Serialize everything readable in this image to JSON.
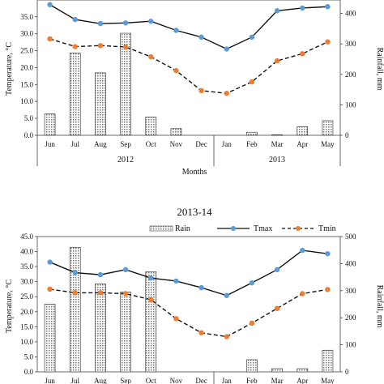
{
  "chart_data": [
    {
      "type": "bar",
      "title": "",
      "months": [
        "Jun",
        "Jul",
        "Aug",
        "Sep",
        "Oct",
        "Nov",
        "Dec",
        "Jan",
        "Feb",
        "Mar",
        "Apr",
        "May"
      ],
      "year_labels": [
        "2012",
        "2013"
      ],
      "xlabel": "Months",
      "ylabel_left": "Temperature, °C",
      "ylabel_right": "Rainfall, mm",
      "yticks_left": [
        "0.0",
        "5.0",
        "10.0",
        "15.0",
        "20.0",
        "25.0",
        "30.0",
        "35.0"
      ],
      "yticks_right": [
        "0",
        "100",
        "200",
        "300",
        "400"
      ],
      "ylim_left": [
        0,
        45
      ],
      "ylim_right": [
        0,
        500
      ],
      "series": [
        {
          "name": "Rain",
          "type": "bar",
          "axis": "right",
          "values": [
            70,
            270,
            205,
            335,
            60,
            22,
            0,
            0,
            10,
            2,
            28,
            48
          ]
        },
        {
          "name": "Tmax",
          "type": "line",
          "axis": "left",
          "color": "#5b9bd5",
          "values": [
            38.6,
            34.2,
            33.0,
            33.2,
            33.7,
            31.0,
            29.0,
            25.5,
            29.0,
            36.8,
            37.6,
            38.0
          ]
        },
        {
          "name": "Tmin",
          "type": "line",
          "axis": "left",
          "color": "#ed7d31",
          "values": [
            28.5,
            26.2,
            26.5,
            26.1,
            23.2,
            19.1,
            13.2,
            12.4,
            15.8,
            22.0,
            24.1,
            27.6
          ]
        }
      ]
    },
    {
      "type": "bar",
      "title": "2013-14",
      "months": [
        "Jun",
        "Jul",
        "Aug",
        "Sep",
        "Oct",
        "Nov",
        "Dec",
        "Jan",
        "Feb",
        "Mar",
        "Apr",
        "May"
      ],
      "xlabel": "",
      "ylabel_left": "Temperature, °C",
      "ylabel_right": "Rainfall, mm",
      "yticks_left": [
        "0.0",
        "5.0",
        "10.0",
        "15.0",
        "20.0",
        "25.0",
        "30.0",
        "35.0",
        "40.0",
        "45.0"
      ],
      "yticks_right": [
        "0",
        "100",
        "200",
        "300",
        "400",
        "500"
      ],
      "ylim_left": [
        0,
        45
      ],
      "ylim_right": [
        0,
        500
      ],
      "legend": [
        "Rain",
        "Tmax",
        "Tmin"
      ],
      "legend_position": "top",
      "series": [
        {
          "name": "Rain",
          "type": "bar",
          "axis": "right",
          "values": [
            250,
            460,
            325,
            295,
            370,
            0,
            0,
            0,
            45,
            12,
            12,
            80
          ]
        },
        {
          "name": "Tmax",
          "type": "line",
          "axis": "left",
          "color": "#5b9bd5",
          "values": [
            36.5,
            33.0,
            32.3,
            34.0,
            31.2,
            30.2,
            28.0,
            25.4,
            29.6,
            34.0,
            40.4,
            39.3
          ]
        },
        {
          "name": "Tmin",
          "type": "line",
          "axis": "left",
          "color": "#ed7d31",
          "values": [
            27.5,
            26.3,
            26.3,
            26.0,
            24.0,
            17.7,
            13.0,
            11.7,
            16.2,
            21.1,
            26.0,
            27.4
          ]
        }
      ]
    }
  ]
}
